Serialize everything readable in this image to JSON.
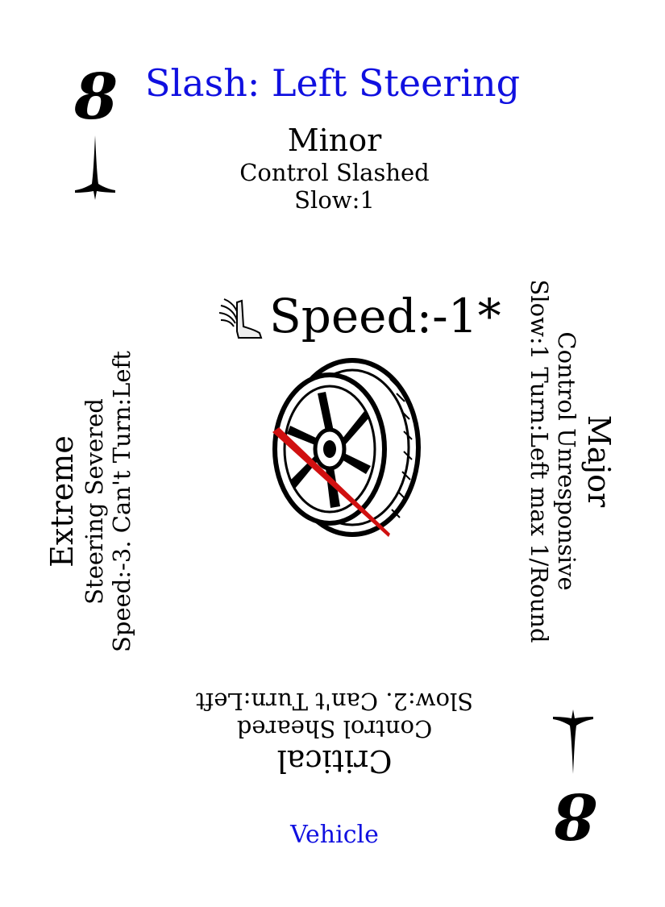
{
  "card": {
    "rank": "8",
    "title": "Slash: Left Steering",
    "footer": "Vehicle",
    "colors": {
      "title": "#1010e0",
      "slash": "#d01010",
      "ink": "#000000"
    }
  },
  "minor": {
    "heading": "Minor",
    "line1": "Control Slashed",
    "line2": "Slow:1"
  },
  "major": {
    "heading": "Major",
    "line1": "Control Unresponsive",
    "line2": "Slow:1 Turn:Left max 1/Round"
  },
  "critical": {
    "heading": "Critical",
    "line1": "Control Sheared",
    "line2": "Slow:2. Can't Turn:Left"
  },
  "extreme": {
    "heading": "Extreme",
    "line1": "Steering Severed",
    "line2": "Speed:-3. Can't Turn:Left"
  },
  "speed": {
    "label": "Speed:-1*",
    "icon": "winged-boot-icon"
  },
  "art": {
    "icon": "slashed-wheel-icon"
  },
  "suit": {
    "icon": "spike-suit-icon"
  }
}
